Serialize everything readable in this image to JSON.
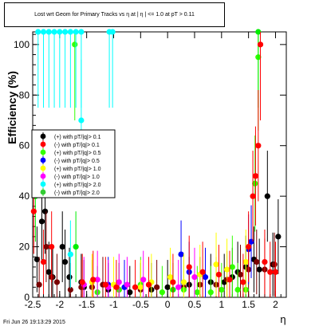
{
  "chart_data": {
    "type": "scatter",
    "title": "Lost wrt Geom for Primary Tracks vs  η at | η | <= 1.0 at pT > 0.11",
    "ylabel": "Efficiency (%)",
    "xlabel": "η",
    "xlim": [
      -2.5,
      2.2
    ],
    "ylim": [
      0,
      105
    ],
    "x_ticks": [
      -2.5,
      -2,
      -1.5,
      -1,
      -0.5,
      0,
      0.5,
      1,
      1.5,
      2
    ],
    "x_tick_labels": [
      "-2.5",
      "-2",
      "-1.5",
      "-1",
      "-0.5",
      "0",
      "0.5",
      "1",
      "1.5",
      "2"
    ],
    "y_ticks": [
      0,
      20,
      40,
      60,
      80,
      100
    ],
    "y_tick_labels": [
      "0",
      "20",
      "40",
      "60",
      "80",
      "100"
    ],
    "grid": false,
    "legend_position": "left",
    "series": [
      {
        "name": "(+) with pT/|q|> 0.1",
        "color": "#000000",
        "points": [
          [
            -2.42,
            15
          ],
          [
            -2.33,
            30
          ],
          [
            -2.27,
            34
          ],
          [
            -2.2,
            10
          ],
          [
            -2.13,
            8
          ],
          [
            -1.95,
            20
          ],
          [
            -1.9,
            14
          ],
          [
            -1.82,
            8
          ],
          [
            -1.6,
            6
          ],
          [
            -1.55,
            4
          ],
          [
            -1.1,
            3
          ],
          [
            -0.7,
            2
          ],
          [
            -0.3,
            3
          ],
          [
            0,
            4
          ],
          [
            0.4,
            5
          ],
          [
            0.8,
            6
          ],
          [
            1.05,
            6
          ],
          [
            1.2,
            8
          ],
          [
            1.3,
            10
          ],
          [
            1.45,
            12
          ],
          [
            1.6,
            15
          ],
          [
            1.7,
            11
          ],
          [
            1.85,
            40
          ],
          [
            1.95,
            13
          ],
          [
            2.05,
            24
          ]
        ]
      },
      {
        "name": "(-) with pT/|q|> 0.1",
        "color": "#7a0000",
        "points": [
          [
            -2.38,
            5
          ],
          [
            -2.25,
            20
          ],
          [
            -2.15,
            8
          ],
          [
            -2.05,
            6
          ],
          [
            -1.8,
            3
          ],
          [
            -1.6,
            4
          ],
          [
            -1.4,
            4
          ],
          [
            -1.2,
            5
          ],
          [
            -0.9,
            3
          ],
          [
            -0.5,
            3
          ],
          [
            -0.2,
            4
          ],
          [
            0.3,
            4
          ],
          [
            0.6,
            5
          ],
          [
            0.9,
            5
          ],
          [
            1.1,
            7
          ],
          [
            1.35,
            9
          ],
          [
            1.5,
            11
          ],
          [
            1.65,
            14
          ],
          [
            1.8,
            11
          ],
          [
            1.98,
            13
          ]
        ]
      },
      {
        "name": "(+) with pT/|q|> 0.5",
        "color": "#33ff00",
        "points": [
          [
            -1.72,
            100
          ],
          [
            1.62,
            45
          ],
          [
            1.68,
            95
          ],
          [
            1.2,
            12
          ],
          [
            -1.3,
            2
          ],
          [
            -0.9,
            3
          ],
          [
            -0.5,
            5
          ],
          [
            -0.1,
            2
          ],
          [
            0.3,
            3
          ],
          [
            0.55,
            2
          ],
          [
            0.8,
            2
          ],
          [
            1.0,
            3
          ],
          [
            1.3,
            3
          ],
          [
            1.45,
            3
          ]
        ]
      },
      {
        "name": "(-) with pT/|q|> 0.5",
        "color": "#0000ff",
        "points": [
          [
            0.25,
            17
          ],
          [
            0.4,
            10
          ],
          [
            0.7,
            8
          ],
          [
            1.5,
            19
          ],
          [
            1.55,
            22
          ],
          [
            -1.1,
            5
          ],
          [
            -0.8,
            4
          ]
        ]
      },
      {
        "name": "(+) with pT/|q|> 1.0",
        "color": "#ffff00",
        "points": [
          [
            0.05,
            8
          ],
          [
            0.3,
            6
          ],
          [
            0.6,
            9
          ],
          [
            0.9,
            13
          ],
          [
            1.1,
            11
          ],
          [
            1.45,
            14
          ],
          [
            -0.5,
            4
          ],
          [
            -0.3,
            6
          ],
          [
            -1.0,
            5
          ],
          [
            -1.4,
            6
          ]
        ]
      },
      {
        "name": "(-) with pT/|q|> 1.0",
        "color": "#ff00ff",
        "points": [
          [
            -1.55,
            5
          ],
          [
            -1.3,
            7
          ],
          [
            -1.1,
            4
          ],
          [
            -0.9,
            6
          ],
          [
            -0.75,
            5
          ],
          [
            -0.45,
            7
          ],
          [
            0.2,
            4
          ],
          [
            0.5,
            8
          ]
        ]
      },
      {
        "name": "(+) with pT/|q|> 2.0",
        "color": "#00ffff",
        "points": [
          [
            -2.4,
            105
          ],
          [
            -2.3,
            105
          ],
          [
            -2.2,
            105
          ],
          [
            -2.1,
            105
          ],
          [
            -2.0,
            105
          ],
          [
            -1.9,
            105
          ],
          [
            -1.8,
            105
          ],
          [
            -1.7,
            105
          ],
          [
            -1.6,
            105
          ],
          [
            -1.08,
            105
          ],
          [
            -1.02,
            105
          ],
          [
            -1.8,
            17
          ],
          [
            -1.6,
            70
          ]
        ]
      },
      {
        "name": "(-) with pT/|q|> 2.0",
        "color": "#00ee00",
        "points": [
          [
            1.68,
            105
          ],
          [
            -2.45,
            40
          ],
          [
            -1.7,
            20
          ],
          [
            0.1,
            3
          ]
        ]
      },
      {
        "name": "(+) with pT/|q|> 0.1 red",
        "color": "#ff0000",
        "points": [
          [
            -2.48,
            34
          ],
          [
            -2.3,
            14
          ],
          [
            -2.15,
            20
          ],
          [
            -1.58,
            6
          ],
          [
            -1.38,
            7
          ],
          [
            -1.15,
            5
          ],
          [
            -0.95,
            4
          ],
          [
            -0.6,
            4
          ],
          [
            -0.35,
            5
          ],
          [
            0.1,
            6
          ],
          [
            0.4,
            12
          ],
          [
            0.65,
            10
          ],
          [
            0.95,
            9
          ],
          [
            1.15,
            7
          ],
          [
            1.4,
            6
          ],
          [
            1.5,
            20
          ],
          [
            1.58,
            40
          ],
          [
            1.63,
            48
          ],
          [
            1.68,
            60
          ],
          [
            1.72,
            100
          ],
          [
            1.8,
            14
          ],
          [
            1.9,
            10
          ],
          [
            2.0,
            10
          ]
        ]
      }
    ]
  },
  "legend": {
    "entries": [
      {
        "marker": "#000000",
        "label": "(+) with pT/|q|> 0.1"
      },
      {
        "marker": "#ff0000",
        "label": "(-) with pT/|q|> 0.1"
      },
      {
        "marker": "#33ff00",
        "label": "(+) with pT/|q|> 0.5"
      },
      {
        "marker": "#0000ff",
        "label": "(-) with pT/|q|> 0.5"
      },
      {
        "marker": "#ffff00",
        "label": "(+) with pT/|q|> 1.0"
      },
      {
        "marker": "#ff00ff",
        "label": "(-) with pT/|q|> 1.0"
      },
      {
        "marker": "#00ffff",
        "label": "(+) with pT/|q|> 2.0"
      },
      {
        "marker": "#33cc33",
        "label": "(-) with pT/|q|> 2.0"
      }
    ]
  },
  "footer": "Fri Jun 26 19:13:29 2015"
}
